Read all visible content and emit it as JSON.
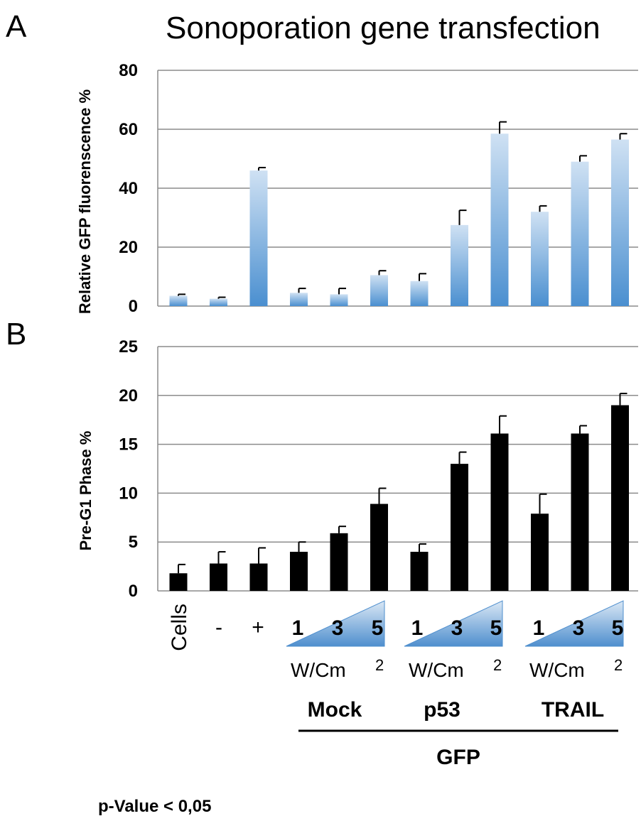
{
  "figure": {
    "title": "Sonoporation gene transfection",
    "footnote": "p-Value < 0,05"
  },
  "chart_data": [
    {
      "panel": "A",
      "type": "bar",
      "ylabel": "Relative GFP fluorenscence %",
      "ylim": [
        0,
        80
      ],
      "yticks": [
        0,
        20,
        40,
        60,
        80
      ],
      "grid": true,
      "bar_color": "#5b9bd5",
      "values": [
        3.5,
        2.5,
        46,
        4.5,
        4.0,
        10.5,
        8.5,
        27.5,
        58.5,
        32,
        49,
        56.5
      ],
      "errors": [
        0.5,
        0.5,
        1.0,
        1.5,
        2.0,
        1.5,
        2.5,
        5.0,
        4.0,
        2.0,
        2.0,
        2.0
      ]
    },
    {
      "panel": "B",
      "type": "bar",
      "ylabel": "Pre-G1 Phase %",
      "ylim": [
        0,
        25
      ],
      "yticks": [
        0,
        5,
        10,
        15,
        20,
        25
      ],
      "grid": true,
      "bar_color": "#000000",
      "values": [
        1.8,
        2.8,
        2.8,
        4.0,
        5.9,
        8.9,
        4.0,
        13.0,
        16.1,
        7.9,
        16.1,
        19.0
      ],
      "errors": [
        0.9,
        1.2,
        1.6,
        1.0,
        0.7,
        1.6,
        0.8,
        1.2,
        1.8,
        2.0,
        0.8,
        1.2
      ]
    }
  ],
  "xaxis": {
    "categories": [
      "Cells",
      "-",
      "+"
    ],
    "groups": [
      {
        "doses": [
          "1",
          "3",
          "5"
        ],
        "unit": "W/Cm",
        "unit_exp": "2",
        "label": "Mock"
      },
      {
        "doses": [
          "1",
          "3",
          "5"
        ],
        "unit": "W/Cm",
        "unit_exp": "2",
        "label": "p53"
      },
      {
        "doses": [
          "1",
          "3",
          "5"
        ],
        "unit": "W/Cm",
        "unit_exp": "2",
        "label": "TRAIL"
      }
    ],
    "supergroup": "GFP"
  },
  "colors": {
    "grid": "#8c8c8c",
    "wedge_top": "#dbe8f5",
    "wedge_bottom": "#4f8fce"
  }
}
